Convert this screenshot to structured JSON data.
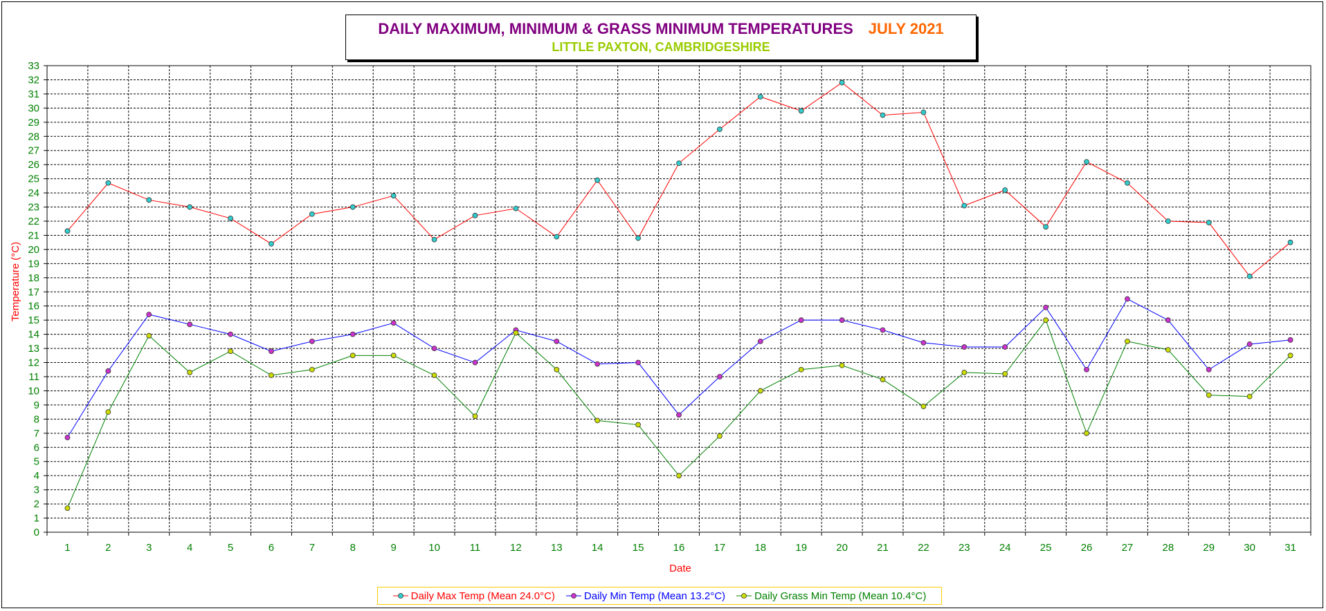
{
  "title": {
    "main": "DAILY MAXIMUM, MINIMUM & GRASS MINIMUM TEMPERATURES",
    "date": "JULY 2021",
    "subtitle": "LITTLE PAXTON, CAMBRIDGESHIRE"
  },
  "colors": {
    "title": "#800080",
    "date": "#ff6600",
    "subtitle": "#99cc00",
    "ticks": "#008000",
    "axis_titles": "#ff0000"
  },
  "chart_data": {
    "type": "line",
    "xlabel": "Date",
    "ylabel": "Temperature (°C)",
    "x": [
      1,
      2,
      3,
      4,
      5,
      6,
      7,
      8,
      9,
      10,
      11,
      12,
      13,
      14,
      15,
      16,
      17,
      18,
      19,
      20,
      21,
      22,
      23,
      24,
      25,
      26,
      27,
      28,
      29,
      30,
      31
    ],
    "ylim": [
      0,
      33
    ],
    "yticks": [
      0,
      1,
      2,
      3,
      4,
      5,
      6,
      7,
      8,
      9,
      10,
      11,
      12,
      13,
      14,
      15,
      16,
      17,
      18,
      19,
      20,
      21,
      22,
      23,
      24,
      25,
      26,
      27,
      28,
      29,
      30,
      31,
      32,
      33
    ],
    "grid": true,
    "legend_position": "bottom",
    "series": [
      {
        "name": "Daily Max Temp (Mean 24.0°C)",
        "color": "#ff0000",
        "marker_color": "#33cccc",
        "values": [
          21.3,
          24.7,
          23.5,
          23.0,
          22.2,
          20.4,
          22.5,
          23.0,
          23.8,
          20.7,
          22.4,
          22.9,
          20.9,
          24.9,
          20.8,
          26.1,
          28.5,
          30.8,
          29.8,
          31.8,
          29.5,
          29.7,
          23.1,
          24.2,
          21.6,
          26.2,
          24.7,
          22.0,
          21.9,
          18.1,
          20.5
        ]
      },
      {
        "name": "Daily Min Temp (Mean 13.2°C)",
        "color": "#0000ff",
        "marker_color": "#cc33cc",
        "values": [
          6.7,
          11.4,
          15.4,
          14.7,
          14.0,
          12.8,
          13.5,
          14.0,
          14.8,
          13.0,
          12.0,
          14.3,
          13.5,
          11.9,
          12.0,
          8.3,
          11.0,
          13.5,
          15.0,
          15.0,
          14.3,
          13.4,
          13.1,
          13.1,
          15.9,
          11.5,
          16.5,
          15.0,
          11.5,
          13.3,
          13.6
        ]
      },
      {
        "name": "Daily Grass Min Temp (Mean 10.4°C)",
        "color": "#008000",
        "marker_color": "#ccdd00",
        "values": [
          1.7,
          8.5,
          13.9,
          11.3,
          12.8,
          11.1,
          11.5,
          12.5,
          12.5,
          11.1,
          8.2,
          14.1,
          11.5,
          7.9,
          7.6,
          4.0,
          6.8,
          10.0,
          11.5,
          11.8,
          10.8,
          8.9,
          11.3,
          11.2,
          15.0,
          7.0,
          13.5,
          12.9,
          9.7,
          9.6,
          12.5
        ]
      }
    ]
  }
}
